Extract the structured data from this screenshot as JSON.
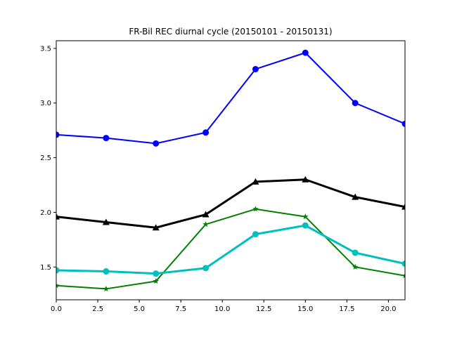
{
  "chart_data": {
    "type": "line",
    "title": "FR-Bil REC diurnal cycle (20150101 - 20150131)",
    "xlabel": "",
    "ylabel": "",
    "xlim": [
      0,
      21
    ],
    "ylim": [
      1.2,
      3.57
    ],
    "grid": false,
    "x": [
      0,
      3,
      6,
      9,
      12,
      15,
      18,
      21
    ],
    "x_ticks": [
      0.0,
      2.5,
      5.0,
      7.5,
      10.0,
      12.5,
      15.0,
      17.5,
      20.0
    ],
    "x_tick_labels": [
      "0.0",
      "2.5",
      "5.0",
      "7.5",
      "10.0",
      "12.5",
      "15.0",
      "17.5",
      "20.0"
    ],
    "y_ticks": [
      1.5,
      2.0,
      2.5,
      3.0,
      3.5
    ],
    "y_tick_labels": [
      "1.5",
      "2.0",
      "2.5",
      "3.0",
      "3.5"
    ],
    "series": [
      {
        "color": "#0000ff",
        "marker": "circle",
        "line_width": "thin",
        "values": [
          2.71,
          2.68,
          2.63,
          2.73,
          3.31,
          3.46,
          3.0,
          2.81
        ]
      },
      {
        "color": "#000000",
        "marker": "triangle",
        "line_width": "thick",
        "values": [
          1.96,
          1.91,
          1.86,
          1.98,
          2.28,
          2.3,
          2.14,
          2.05
        ]
      },
      {
        "color": "#008000",
        "marker": "star",
        "line_width": "thin",
        "values": [
          1.33,
          1.3,
          1.37,
          1.89,
          2.03,
          1.96,
          1.5,
          1.42
        ]
      },
      {
        "color": "#00bfbf",
        "marker": "circle",
        "line_width": "thick",
        "values": [
          1.47,
          1.46,
          1.44,
          1.49,
          1.8,
          1.88,
          1.63,
          1.53
        ]
      }
    ]
  }
}
